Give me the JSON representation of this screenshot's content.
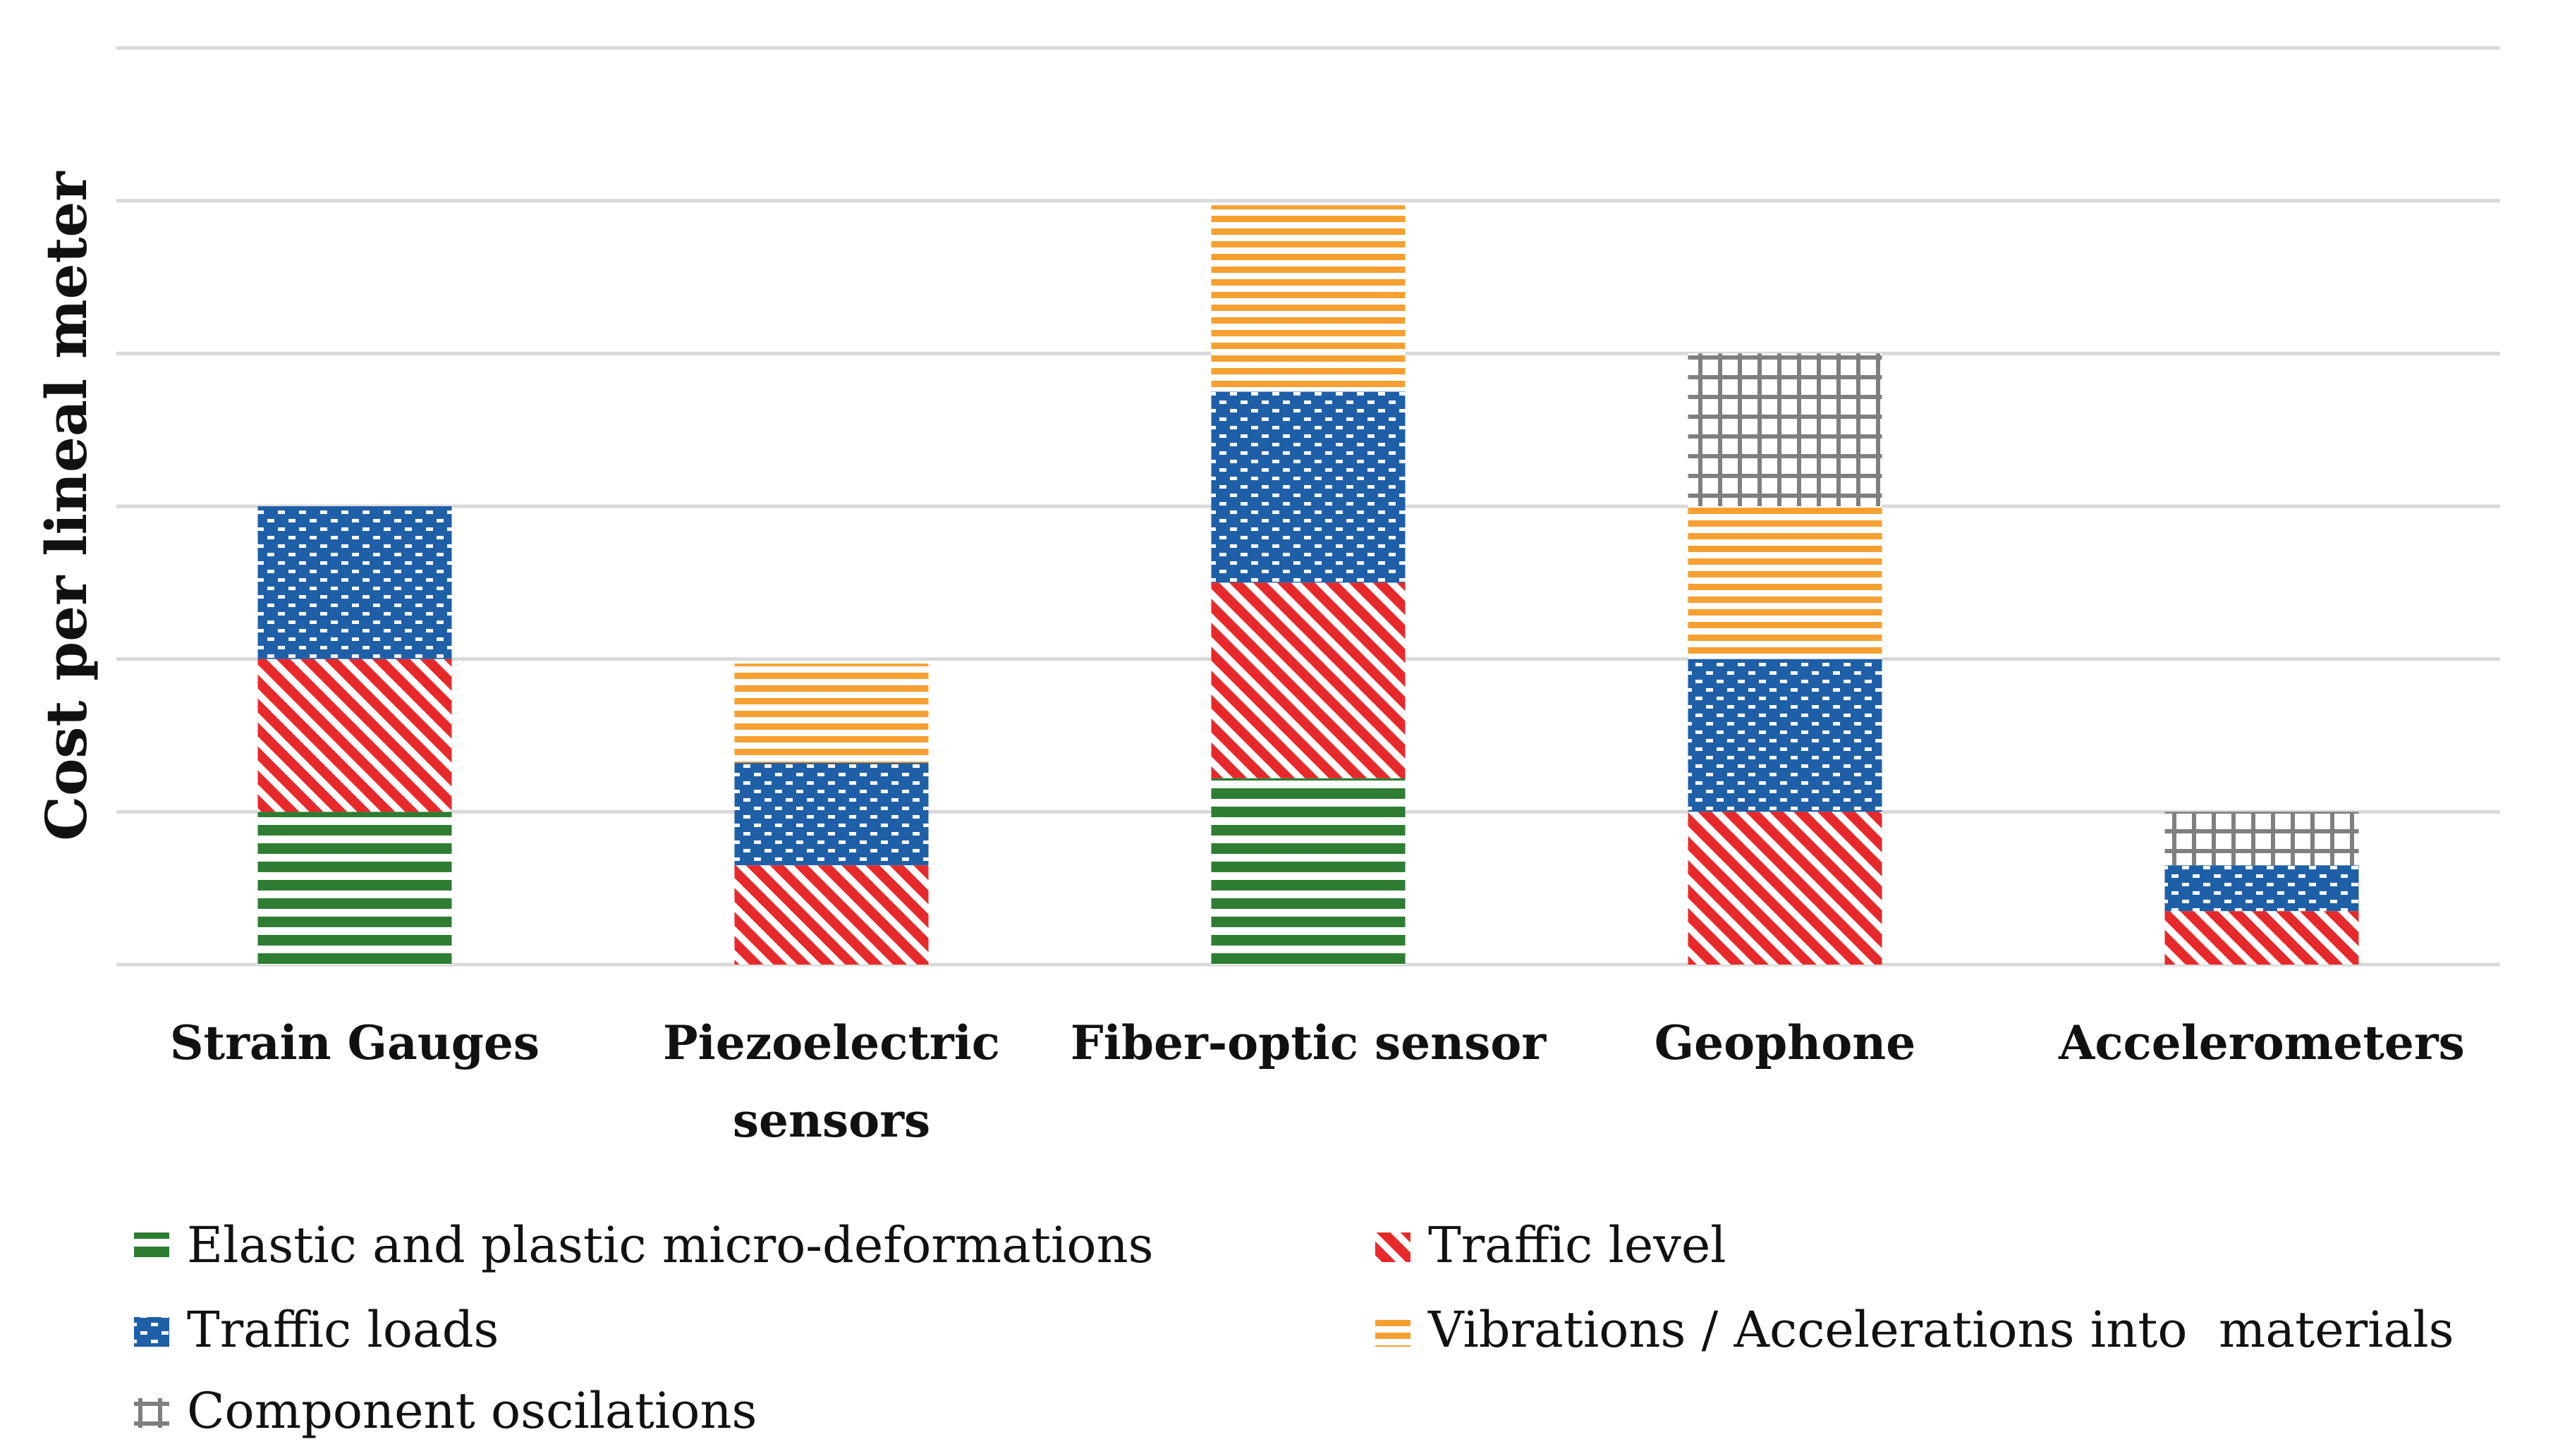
{
  "chart_data": {
    "type": "stacked-bar",
    "title": "",
    "xlabel": "",
    "ylabel": "Cost per lineal meter",
    "ylim": [
      0,
      6
    ],
    "grid": true,
    "y_tick_labels_shown": false,
    "legend_position": "bottom",
    "categories": [
      {
        "label_lines": [
          "Strain Gauges"
        ]
      },
      {
        "label_lines": [
          "Piezoelectric",
          "sensors"
        ]
      },
      {
        "label_lines": [
          "Fiber-optic sensor"
        ]
      },
      {
        "label_lines": [
          "Geophone"
        ]
      },
      {
        "label_lines": [
          "Accelerometers"
        ]
      }
    ],
    "series": [
      {
        "name": "Elastic and plastic micro-deformations",
        "color": "#2e7d32",
        "pattern": "horizontal-lines",
        "values": [
          1.0,
          0,
          1.22,
          0,
          0
        ]
      },
      {
        "name": "Traffic level",
        "color": "#e8292b",
        "pattern": "diagonal-lines",
        "values": [
          1.0,
          0.65,
          1.28,
          1.0,
          0.35
        ]
      },
      {
        "name": "Traffic loads",
        "color": "#1f5fa8",
        "pattern": "dotted",
        "values": [
          1.0,
          0.67,
          1.25,
          1.0,
          0.3
        ]
      },
      {
        "name": "Vibrations / Accelerations into  materials",
        "color": "#f5a030",
        "pattern": "horizontal-lines",
        "values": [
          0,
          0.65,
          1.22,
          1.0,
          0
        ]
      },
      {
        "name": "Component oscilations",
        "color": "#7f7f7f",
        "pattern": "grid",
        "values": [
          0,
          0,
          0,
          1.0,
          0.35
        ]
      }
    ]
  }
}
